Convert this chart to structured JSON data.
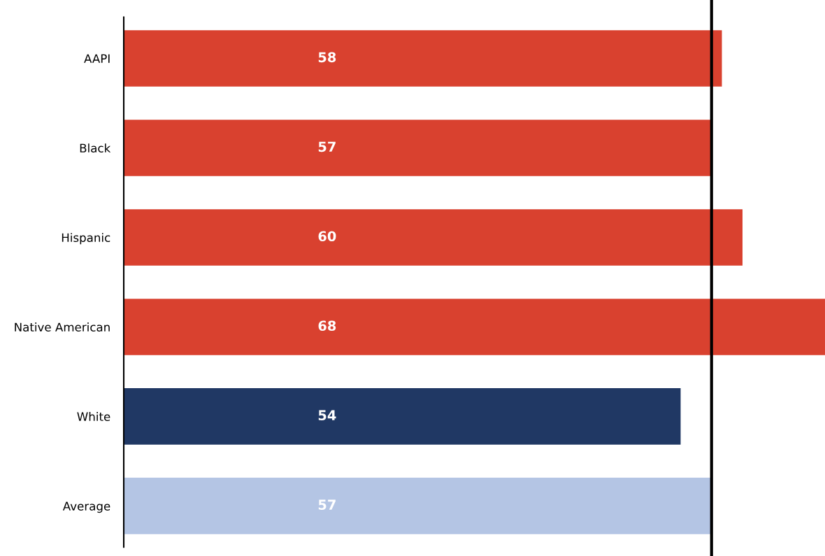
{
  "chart_data": {
    "type": "bar",
    "orientation": "horizontal",
    "categories": [
      "AAPI",
      "Black",
      "Hispanic",
      "Native American",
      "White",
      "Average"
    ],
    "values": [
      58,
      57,
      60,
      68,
      54,
      57
    ],
    "colors": [
      "#d9412f",
      "#d9412f",
      "#d9412f",
      "#d9412f",
      "#203864",
      "#b4c5e4"
    ],
    "data_labels": true,
    "xlim": [
      0,
      68
    ],
    "tick_labels": "y",
    "grid": false,
    "legend": false,
    "ref_lines": [
      {
        "axis": "x",
        "value": 57,
        "label": null,
        "color": "#000000",
        "line_style": "solid"
      }
    ]
  }
}
